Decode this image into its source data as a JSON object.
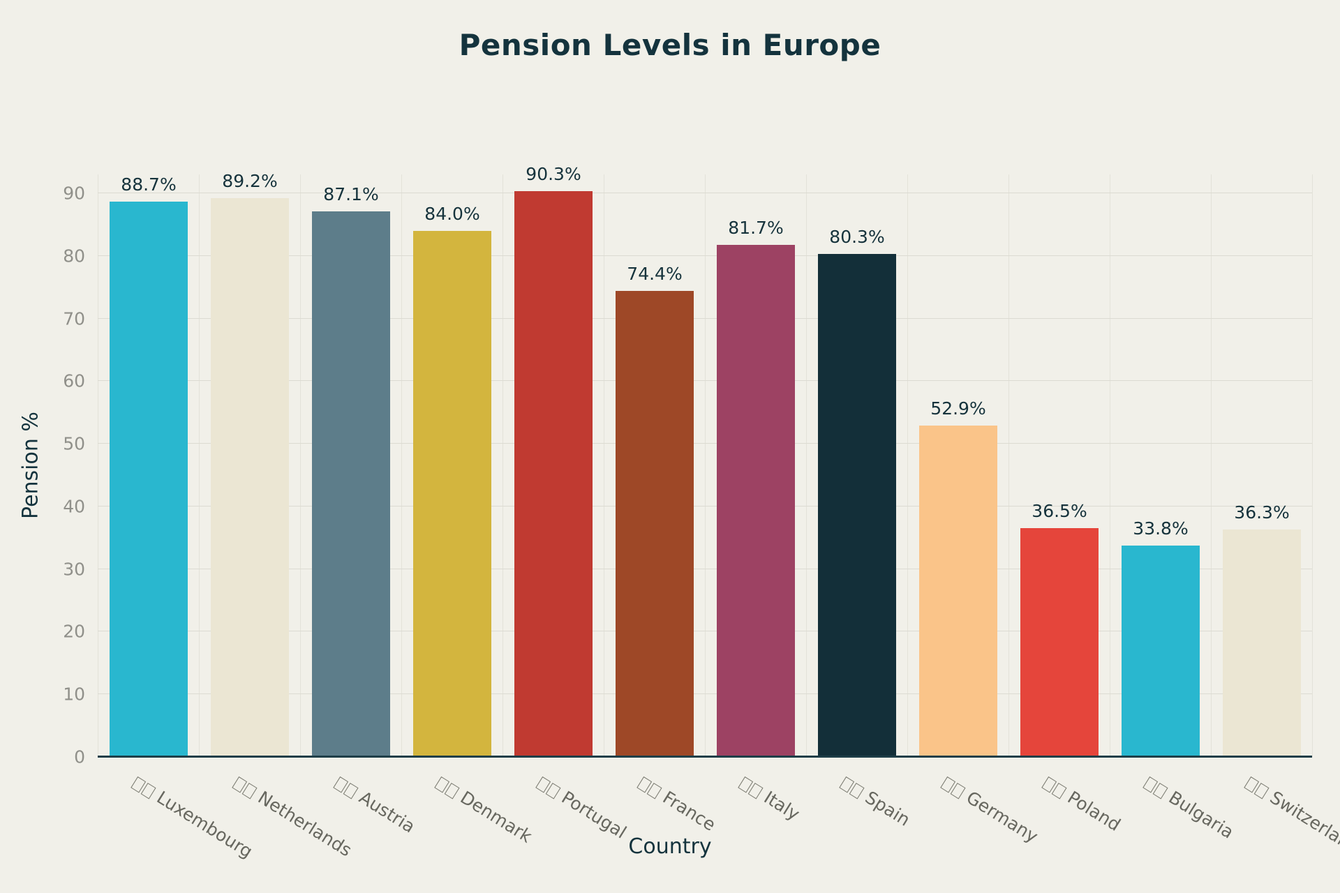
{
  "chart_data": {
    "type": "bar",
    "title": "Pension Levels in Europe",
    "xlabel": "Country",
    "ylabel": "Pension %",
    "ylim": [
      0,
      93
    ],
    "yticks": [
      0,
      10,
      20,
      30,
      40,
      50,
      60,
      70,
      80,
      90
    ],
    "grid": true,
    "legend": "none",
    "background_color": "#f1f0e9",
    "title_color": "#14333d",
    "axis_title_color": "#14333d",
    "value_label_color": "#16333c",
    "categories": [
      "Luxembourg",
      "Netherlands",
      "Austria",
      "Denmark",
      "Portugal",
      "France",
      "Italy",
      "Spain",
      "Germany",
      "Poland",
      "Bulgaria",
      "Switzerland"
    ],
    "values": [
      88.7,
      89.2,
      87.1,
      84.0,
      90.3,
      74.4,
      81.7,
      80.3,
      52.9,
      36.5,
      33.8,
      36.3
    ],
    "value_labels": [
      "88.7%",
      "89.2%",
      "87.1%",
      "84.0%",
      "90.3%",
      "74.4%",
      "81.7%",
      "80.3%",
      "52.9%",
      "36.5%",
      "33.8%",
      "36.3%"
    ],
    "bar_colors": [
      "#29b7cf",
      "#ebe6d3",
      "#5d7d8a",
      "#d3b53e",
      "#c03a31",
      "#9e4827",
      "#9d4263",
      "#132f39",
      "#fac489",
      "#e5453b",
      "#29b7cf",
      "#ebe6d3"
    ],
    "x_tick_flag_placeholder_boxes": 2
  }
}
